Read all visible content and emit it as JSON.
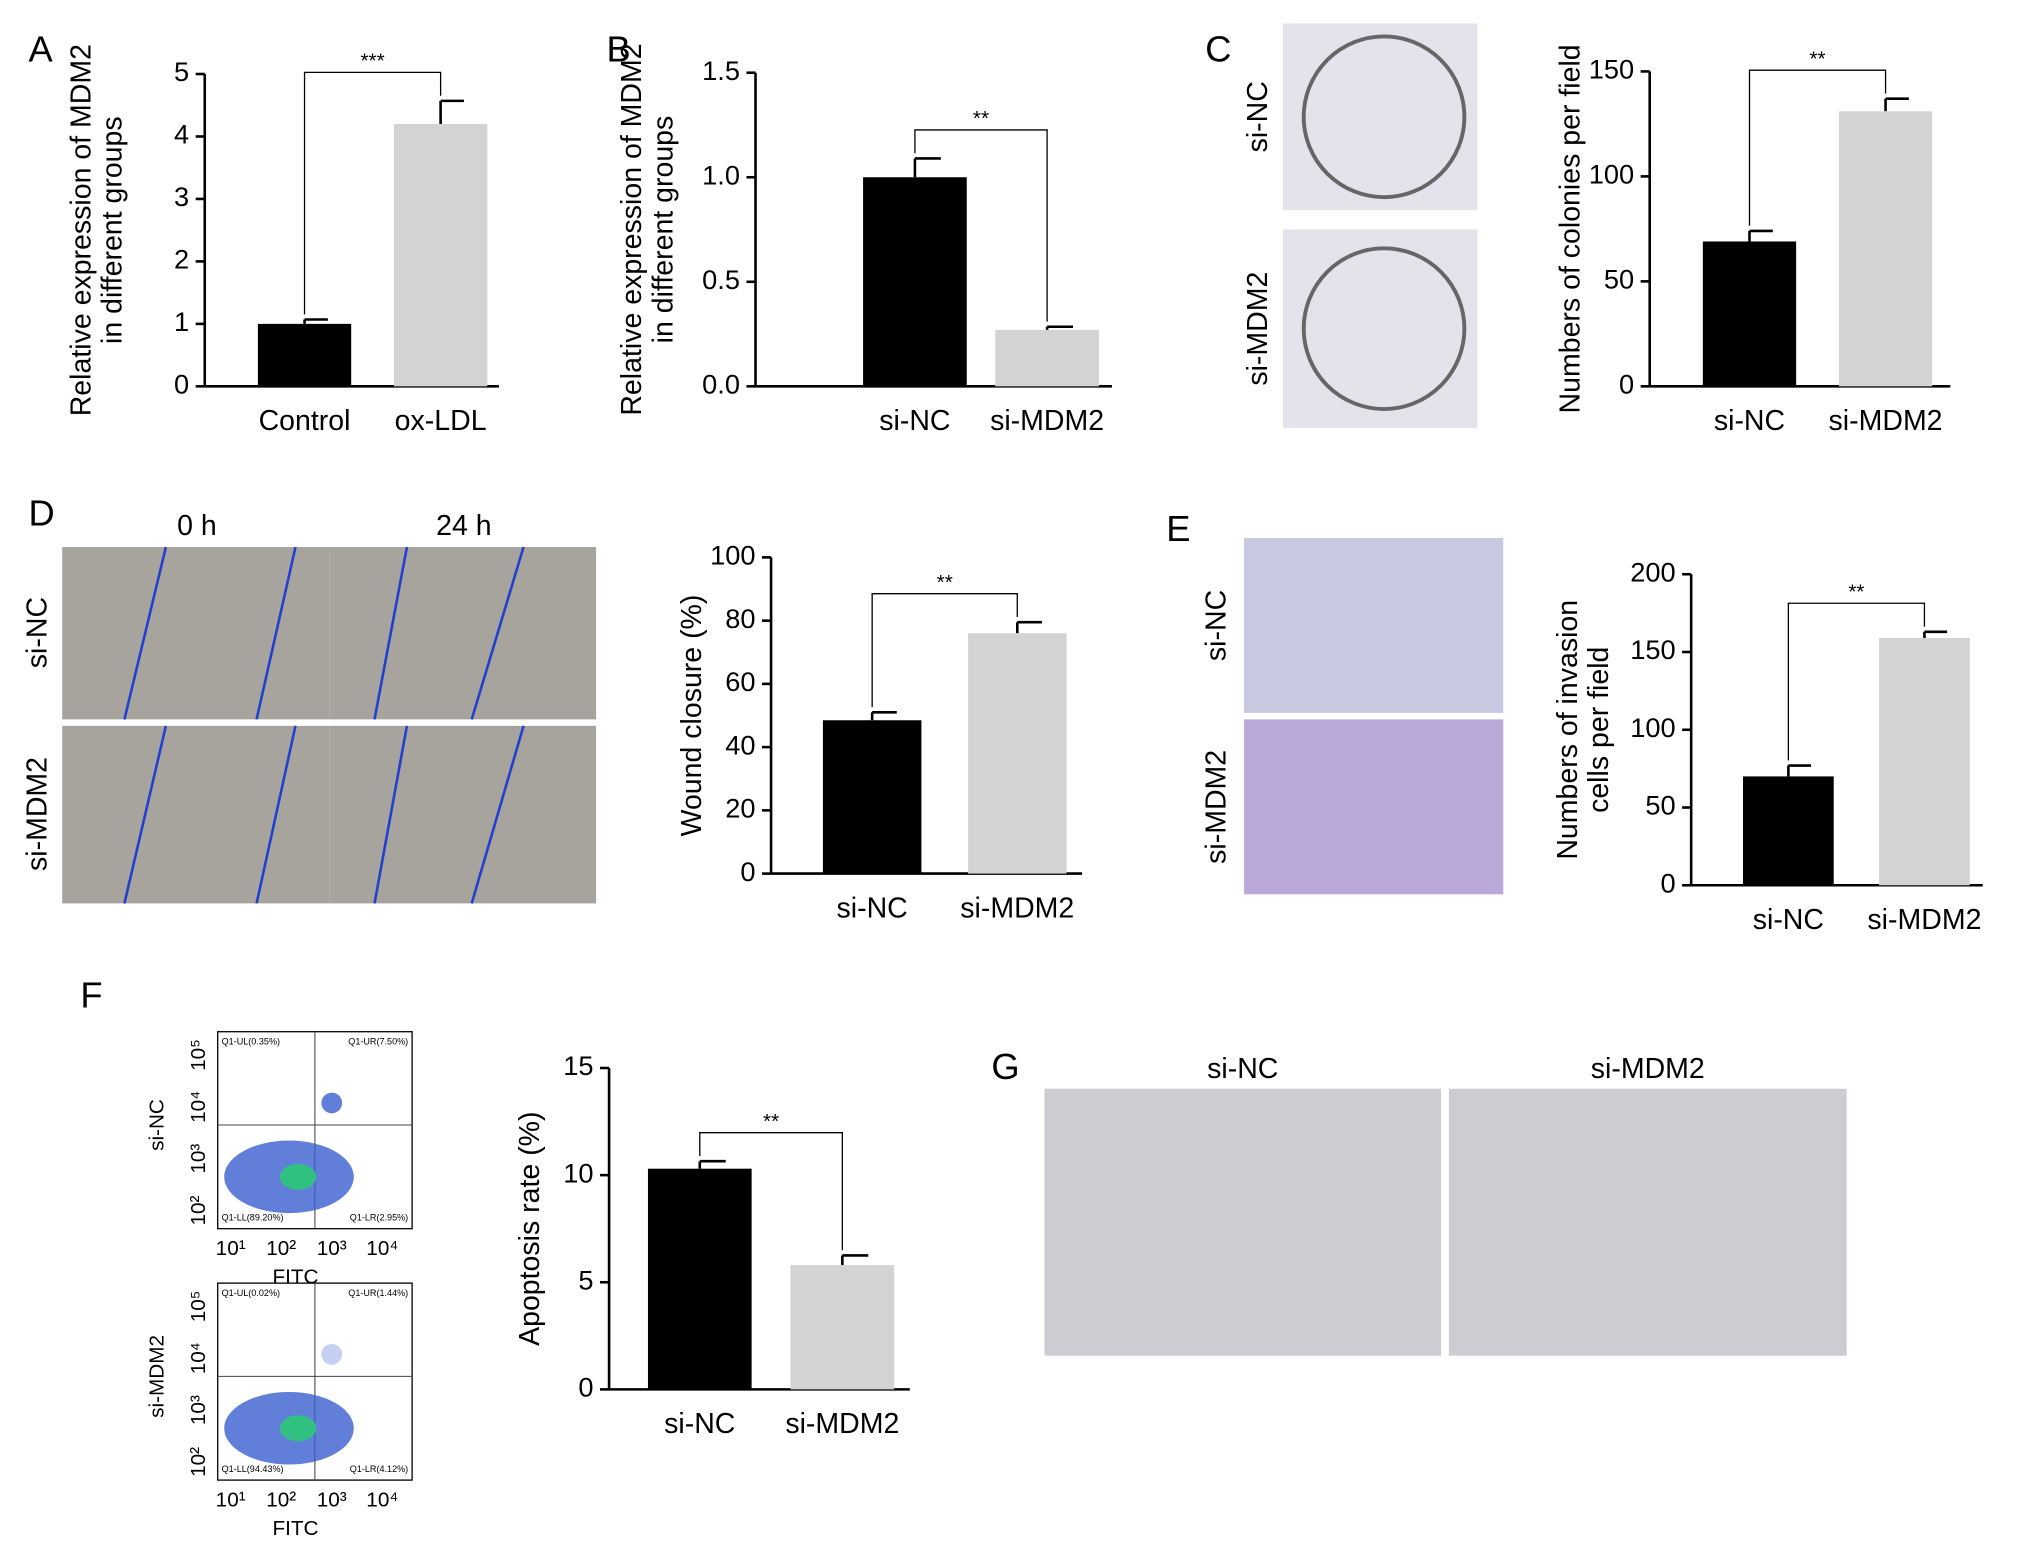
{
  "panel_labels": [
    "A",
    "B",
    "C",
    "D",
    "E",
    "F",
    "G"
  ],
  "chart_data": [
    {
      "type": "bar",
      "ylabel": [
        "Relative expression of MDM2",
        "in different groups"
      ],
      "categories": [
        "Control",
        "ox-LDL"
      ],
      "values": [
        1.0,
        4.2
      ],
      "errors": [
        0.07,
        0.37
      ],
      "colors": [
        "#000000",
        "#d3d3d3"
      ],
      "ylim": [
        0,
        5
      ],
      "yticks": [
        0,
        1,
        2,
        3,
        4,
        5
      ],
      "significance": "***"
    },
    {
      "type": "bar",
      "ylabel": [
        "Relative expression of MDM2",
        "in different groups"
      ],
      "categories": [
        "si-NC",
        "si-MDM2"
      ],
      "values": [
        1.0,
        0.27
      ],
      "errors": [
        0.09,
        0.015
      ],
      "colors": [
        "#000000",
        "#d3d3d3"
      ],
      "ylim": [
        0,
        1.5
      ],
      "yticks": [
        {
          "value": 0,
          "label": "0.0"
        },
        {
          "value": 0.5,
          "label": "0.5"
        },
        {
          "value": 1,
          "label": "1.0"
        },
        {
          "value": 1.5,
          "label": "1.5"
        }
      ],
      "significance": "**"
    },
    {
      "type": "bar",
      "ylabel": [
        "Numbers of colonies per field"
      ],
      "categories": [
        "si-NC",
        "si-MDM2"
      ],
      "values": [
        69,
        131
      ],
      "errors": [
        5,
        6
      ],
      "colors": [
        "#000000",
        "#d3d3d3"
      ],
      "ylim": [
        0,
        150
      ],
      "yticks": [
        0,
        50,
        100,
        150
      ],
      "significance": "**"
    },
    {
      "type": "bar",
      "ylabel": [
        "Wound closure (%)"
      ],
      "categories": [
        "si-NC",
        "si-MDM2"
      ],
      "values": [
        48.5,
        76
      ],
      "errors": [
        2.5,
        3.5
      ],
      "colors": [
        "#000000",
        "#d3d3d3"
      ],
      "ylim": [
        0,
        100
      ],
      "yticks": [
        0,
        20,
        40,
        60,
        80,
        100
      ],
      "significance": "**"
    },
    {
      "type": "bar",
      "ylabel": [
        "Numbers of invasion",
        "cells per field"
      ],
      "categories": [
        "si-NC",
        "si-MDM2"
      ],
      "values": [
        70,
        159
      ],
      "errors": [
        7,
        4
      ],
      "colors": [
        "#000000",
        "#d3d3d3"
      ],
      "ylim": [
        0,
        200
      ],
      "yticks": [
        0,
        50,
        100,
        150,
        200
      ],
      "significance": "**"
    },
    {
      "type": "bar",
      "ylabel": [
        "Apoptosis rate (%)"
      ],
      "categories": [
        "si-NC",
        "si-MDM2"
      ],
      "values": [
        10.3,
        5.8
      ],
      "errors": [
        0.35,
        0.45
      ],
      "colors": [
        "#000000",
        "#d3d3d3"
      ],
      "ylim": [
        0,
        15
      ],
      "yticks": [
        0,
        5,
        10,
        15
      ],
      "significance": "**"
    }
  ],
  "image_panels": {
    "C": {
      "rows": [
        "si-NC",
        "si-MDM2"
      ]
    },
    "D": {
      "columns": [
        "0 h",
        "24 h"
      ],
      "rows": [
        "si-NC",
        "si-MDM2"
      ]
    },
    "E": {
      "rows": [
        "si-NC",
        "si-MDM2"
      ]
    },
    "F": {
      "xlabel": "FITC",
      "xticks": [
        "10¹",
        "10²",
        "10³",
        "10⁴"
      ],
      "yticks": [
        "10²",
        "10³",
        "10⁴",
        "10⁵"
      ],
      "plots": [
        {
          "name": "si-NC",
          "quadrants": [
            "Q1-UL(0.35%)",
            "Q1-UR(7.50%)",
            "Q1-LL(89.20%)",
            "Q1-LR(2.95%)"
          ]
        },
        {
          "name": "si-MDM2",
          "quadrants": [
            "Q1-UL(0.02%)",
            "Q1-UR(1.44%)",
            "Q1-LL(94.43%)",
            "Q1-LR(4.12%)"
          ]
        }
      ]
    },
    "G": {
      "columns": [
        "si-NC",
        "si-MDM2"
      ]
    }
  }
}
